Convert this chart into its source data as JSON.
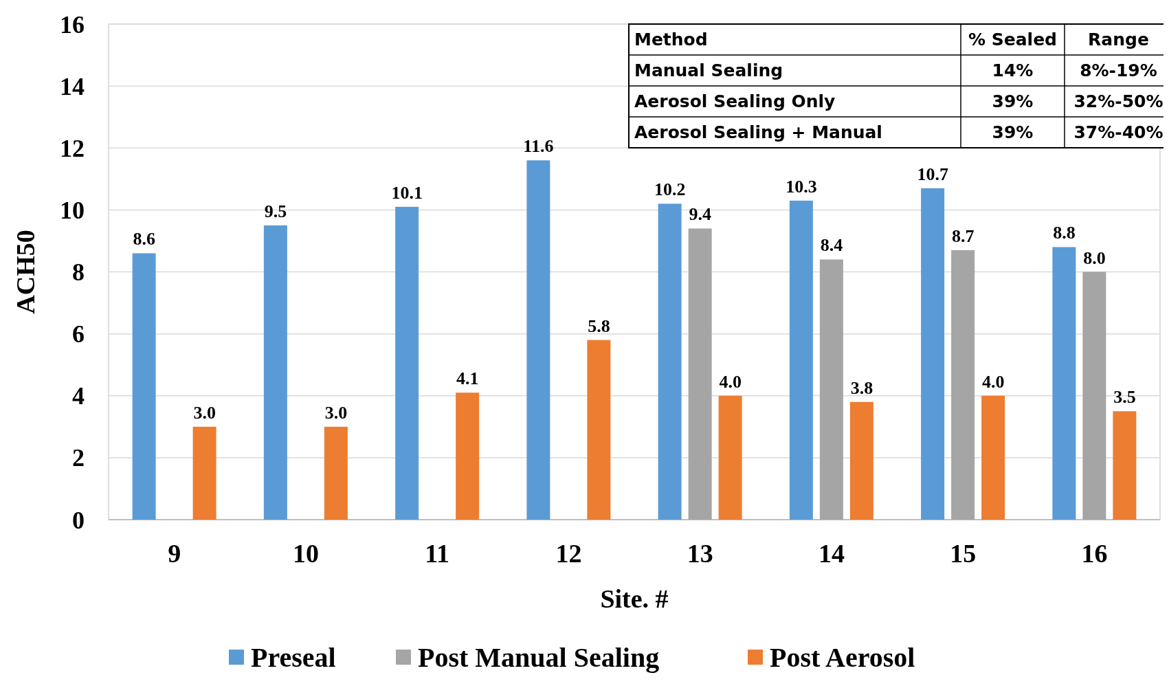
{
  "chart_data": {
    "type": "bar",
    "xlabel": "Site. #",
    "ylabel": "ACH50",
    "categories": [
      "9",
      "10",
      "11",
      "12",
      "13",
      "14",
      "15",
      "16"
    ],
    "series": [
      {
        "name": "Preseal",
        "color": "#5b9bd5",
        "values": [
          8.6,
          9.5,
          10.1,
          11.6,
          10.2,
          10.3,
          10.7,
          8.8
        ],
        "value_labels": [
          "8.6",
          "9.5",
          "10.1",
          "11.6",
          "10.2",
          "10.3",
          "10.7",
          "8.8"
        ]
      },
      {
        "name": "Post Manual Sealing",
        "color": "#a5a5a5",
        "values": [
          null,
          null,
          null,
          null,
          9.4,
          8.4,
          8.7,
          8.0
        ],
        "value_labels": [
          null,
          null,
          null,
          null,
          "9.4",
          "8.4",
          "8.7",
          "8.0"
        ]
      },
      {
        "name": "Post Aerosol",
        "color": "#ed7d31",
        "values": [
          3.0,
          3.0,
          4.1,
          5.8,
          4.0,
          3.8,
          4.0,
          3.5
        ],
        "value_labels": [
          "3.0",
          "3.0",
          "4.1",
          "5.8",
          "4.0",
          "3.8",
          "4.0",
          "3.5"
        ]
      }
    ],
    "ylim": [
      0,
      16
    ],
    "yticks": [
      0,
      2,
      4,
      6,
      8,
      10,
      12,
      14,
      16
    ],
    "grid": "y",
    "legend": "bottom",
    "annotations": [
      "Method",
      "% Sealed",
      "Range",
      "Manual Sealing",
      "14%",
      "8%-19%",
      "Aerosol Sealing Only",
      "39%",
      "32%-50%",
      "Aerosol Sealing + Manual",
      "39%",
      "37%-40%"
    ]
  }
}
